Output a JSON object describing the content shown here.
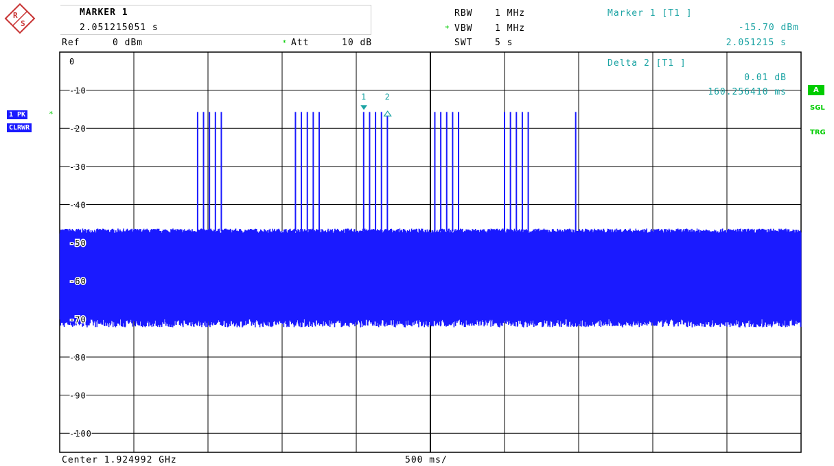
{
  "header": {
    "logo_text_r": "R",
    "logo_text_s": "S",
    "marker_title": "MARKER 1",
    "marker_value": "2.051215051 s",
    "ref_label": "Ref",
    "ref_value": "0 dBm",
    "att_label": "Att",
    "att_value": "10 dB",
    "rbw_label": "RBW",
    "rbw_value": "1 MHz",
    "vbw_label": "VBW",
    "vbw_value": "1 MHz",
    "swt_label": "SWT",
    "swt_value": "5 s",
    "star": "*"
  },
  "marker_readout": {
    "m1_title": "Marker 1 [T1 ]",
    "m1_level": "-15.70 dBm",
    "m1_time": "2.051215 s",
    "delta_title": "Delta 2 [T1 ]",
    "delta_level": "0.01 dB",
    "delta_time": "160.256410 ms"
  },
  "left_tags": {
    "trace": "1 PK",
    "mode": "CLRWR"
  },
  "right_tags": {
    "a": "A",
    "sgl": "SGL",
    "trg": "TRG"
  },
  "footer": {
    "center": "Center 1.924992 GHz",
    "span": "500 ms/"
  },
  "colors": {
    "trace": "#1a1aff",
    "marker": "#1aa3a3",
    "status_green": "#00cc00",
    "grid": "#000000"
  },
  "chart_data": {
    "type": "line",
    "x_unit": "s",
    "y_unit": "dBm",
    "xlim": [
      0,
      5
    ],
    "ylim": [
      -105,
      0
    ],
    "y_ticks": [
      "0",
      "-10",
      "-20",
      "-30",
      "-40",
      "-50",
      "-60",
      "-70",
      "-80",
      "-90",
      "-100"
    ],
    "y_tick_values": [
      0,
      -10,
      -20,
      -30,
      -40,
      -50,
      -60,
      -70,
      -80,
      -90,
      -100
    ],
    "grid": true,
    "noise_floor_dbm": [
      -47,
      -71
    ],
    "pulse_peak_dbm": -15.7,
    "pulse_bursts": [
      {
        "times_s": [
          0.93,
          0.97,
          1.01,
          1.05,
          1.09
        ]
      },
      {
        "times_s": [
          1.59,
          1.63,
          1.67,
          1.71,
          1.75
        ]
      },
      {
        "times_s": [
          2.05,
          2.09,
          2.13,
          2.17,
          2.21
        ]
      },
      {
        "times_s": [
          2.53,
          2.57,
          2.61,
          2.65,
          2.69
        ]
      },
      {
        "times_s": [
          3.0,
          3.04,
          3.08,
          3.12,
          3.16
        ]
      },
      {
        "times_s": [
          3.48
        ]
      }
    ],
    "markers": [
      {
        "label": "1",
        "x_s": 2.051215,
        "y_dbm": -15.7,
        "shape": "filled-down-triangle"
      },
      {
        "label": "2",
        "x_s": 2.211471,
        "y_dbm": -15.69,
        "shape": "open-up-triangle"
      }
    ]
  }
}
